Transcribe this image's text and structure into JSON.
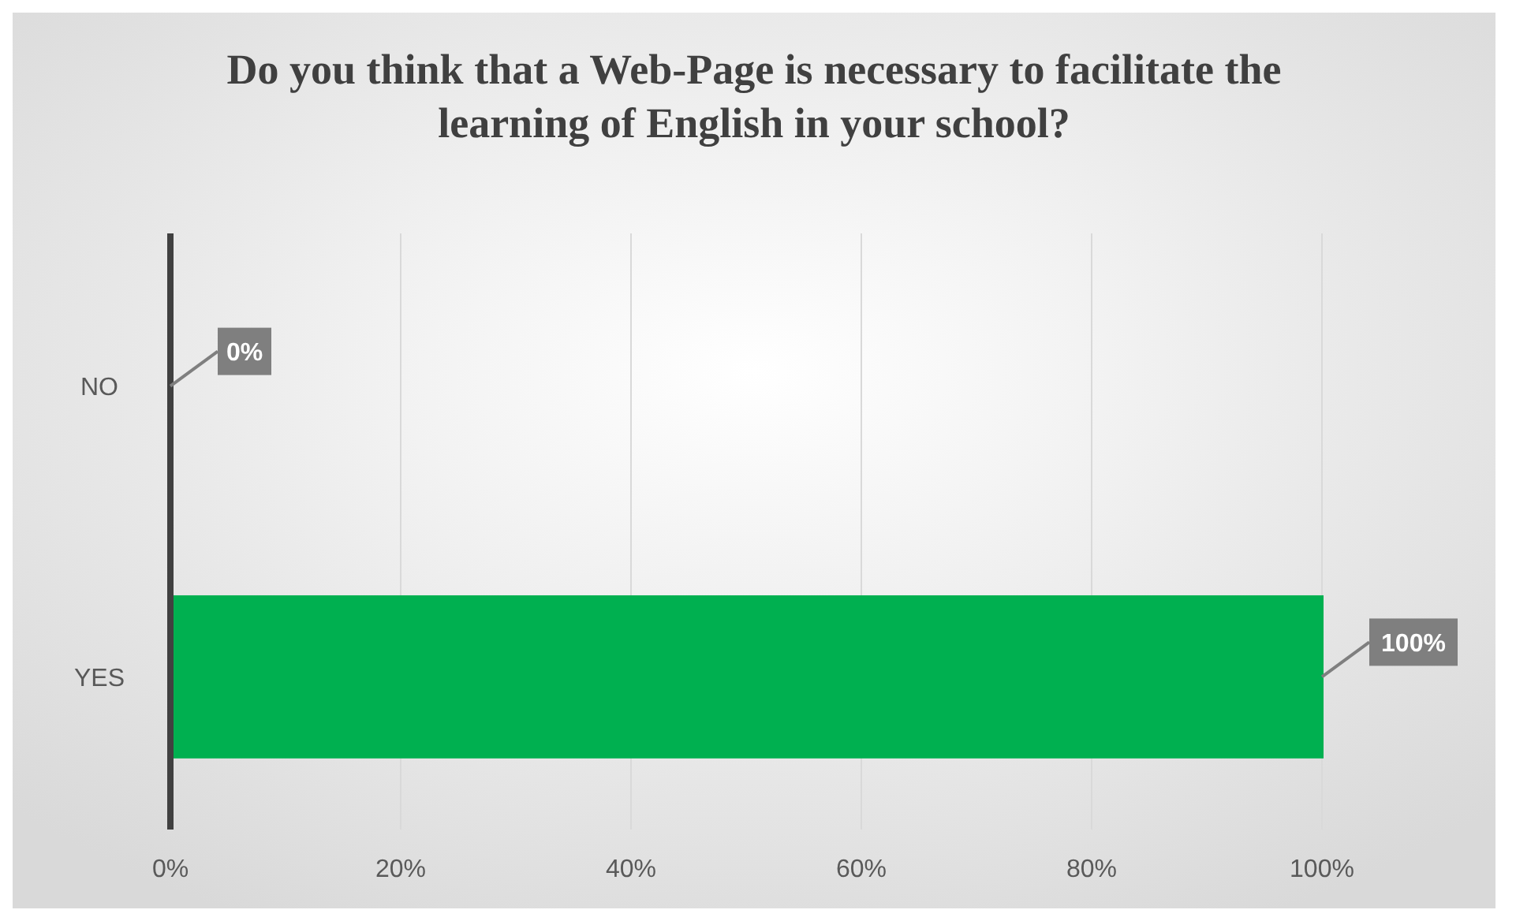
{
  "chart_data": {
    "type": "bar",
    "orientation": "horizontal",
    "title": "Do you think that a Web-Page is necessary to facilitate the learning of English in your school?",
    "categories": [
      "NO",
      "YES"
    ],
    "values": [
      0,
      100
    ],
    "colors": [
      "#c00000",
      "#00b050"
    ],
    "value_labels": [
      "0%",
      "100%"
    ],
    "xlim": [
      0,
      100
    ],
    "xticks": [
      {
        "value": 0,
        "label": "0%"
      },
      {
        "value": 20,
        "label": "20%"
      },
      {
        "value": 40,
        "label": "40%"
      },
      {
        "value": 60,
        "label": "60%"
      },
      {
        "value": 80,
        "label": "80%"
      },
      {
        "value": 100,
        "label": "100%"
      }
    ],
    "grid": "x",
    "legend": false
  }
}
